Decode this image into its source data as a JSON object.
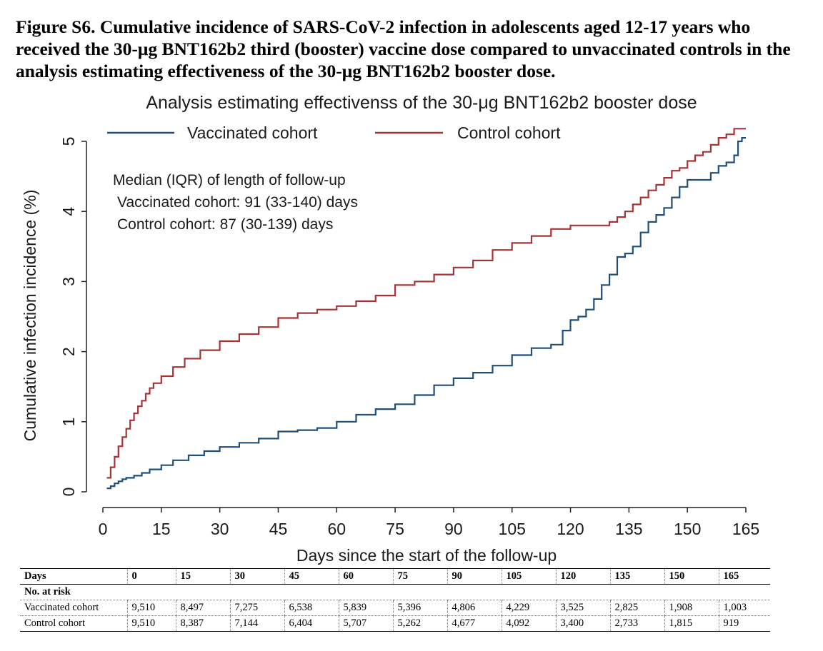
{
  "figure": {
    "caption": "Figure S6. Cumulative incidence of SARS-CoV-2 infection in adolescents aged 12-17 years who received the 30-μg BNT162b2 third (booster) vaccine dose compared to unvaccinated controls in the analysis estimating effectiveness of the 30-μg BNT162b2 booster dose."
  },
  "annotation": {
    "line1": "Median (IQR) of length of follow-up",
    "line2": "Vaccinated cohort: 91 (33-140) days",
    "line3": "Control cohort: 87 (30-139) days"
  },
  "chart_data": {
    "type": "line",
    "title": "Analysis estimating effectivenss of the 30-μg BNT162b2 booster dose",
    "xlabel": "Days since the start of the follow-up",
    "ylabel": "Cumulative infection incidence (%)",
    "xlim": [
      0,
      165
    ],
    "ylim": [
      0,
      5
    ],
    "xticks": [
      0,
      15,
      30,
      45,
      60,
      75,
      90,
      105,
      120,
      135,
      150,
      165
    ],
    "yticks": [
      0,
      1,
      2,
      3,
      4,
      5
    ],
    "grid": false,
    "legend_position": "top",
    "series": [
      {
        "name": "Vaccinated cohort",
        "color": "#1f4e79",
        "x": [
          1,
          2,
          3,
          4,
          5,
          6,
          8,
          10,
          12,
          15,
          18,
          22,
          26,
          30,
          35,
          40,
          45,
          50,
          55,
          60,
          65,
          70,
          75,
          80,
          85,
          90,
          95,
          100,
          105,
          110,
          115,
          118,
          120,
          122,
          124,
          126,
          128,
          130,
          132,
          134,
          136,
          138,
          140,
          142,
          144,
          146,
          148,
          150,
          152,
          154,
          156,
          158,
          160,
          162,
          163,
          164,
          165
        ],
        "y": [
          0.05,
          0.08,
          0.12,
          0.15,
          0.18,
          0.2,
          0.23,
          0.27,
          0.32,
          0.38,
          0.45,
          0.52,
          0.58,
          0.64,
          0.7,
          0.76,
          0.86,
          0.88,
          0.91,
          1.0,
          1.1,
          1.18,
          1.25,
          1.38,
          1.52,
          1.62,
          1.7,
          1.8,
          1.95,
          2.05,
          2.1,
          2.3,
          2.45,
          2.5,
          2.6,
          2.75,
          2.95,
          3.1,
          3.35,
          3.4,
          3.5,
          3.7,
          3.85,
          3.95,
          4.05,
          4.2,
          4.35,
          4.45,
          4.45,
          4.45,
          4.55,
          4.65,
          4.7,
          4.8,
          5.0,
          5.05,
          5.05
        ]
      },
      {
        "name": "Control cohort",
        "color": "#a83236",
        "x": [
          1,
          2,
          3,
          4,
          5,
          6,
          7,
          8,
          9,
          10,
          11,
          12,
          13,
          15,
          18,
          21,
          25,
          30,
          35,
          40,
          45,
          50,
          55,
          60,
          65,
          70,
          75,
          80,
          85,
          90,
          95,
          100,
          105,
          110,
          115,
          120,
          125,
          130,
          132,
          134,
          136,
          138,
          140,
          142,
          144,
          146,
          148,
          150,
          152,
          154,
          156,
          158,
          160,
          162,
          165
        ],
        "y": [
          0.2,
          0.35,
          0.5,
          0.65,
          0.78,
          0.9,
          1.02,
          1.12,
          1.22,
          1.3,
          1.4,
          1.48,
          1.55,
          1.65,
          1.78,
          1.9,
          2.02,
          2.15,
          2.25,
          2.35,
          2.48,
          2.55,
          2.6,
          2.65,
          2.72,
          2.8,
          2.95,
          3.0,
          3.1,
          3.2,
          3.3,
          3.45,
          3.55,
          3.65,
          3.75,
          3.8,
          3.8,
          3.85,
          3.92,
          4.0,
          4.1,
          4.2,
          4.3,
          4.38,
          4.48,
          4.58,
          4.62,
          4.72,
          4.8,
          4.85,
          4.95,
          5.05,
          5.1,
          5.18,
          5.18
        ]
      }
    ]
  },
  "risk_table": {
    "header_label": "Days",
    "days": [
      "0",
      "15",
      "30",
      "45",
      "60",
      "75",
      "90",
      "105",
      "120",
      "135",
      "150",
      "165"
    ],
    "subheader": "No. at risk",
    "rows": [
      {
        "label": "Vaccinated cohort",
        "values": [
          "9,510",
          "8,497",
          "7,275",
          "6,538",
          "5,839",
          "5,396",
          "4,806",
          "4,229",
          "3,525",
          "2,825",
          "1,908",
          "1,003"
        ]
      },
      {
        "label": "Control cohort",
        "values": [
          "9,510",
          "8,387",
          "7,144",
          "6,404",
          "5,707",
          "5,262",
          "4,677",
          "4,092",
          "3,400",
          "2,733",
          "1,815",
          "919"
        ]
      }
    ]
  }
}
